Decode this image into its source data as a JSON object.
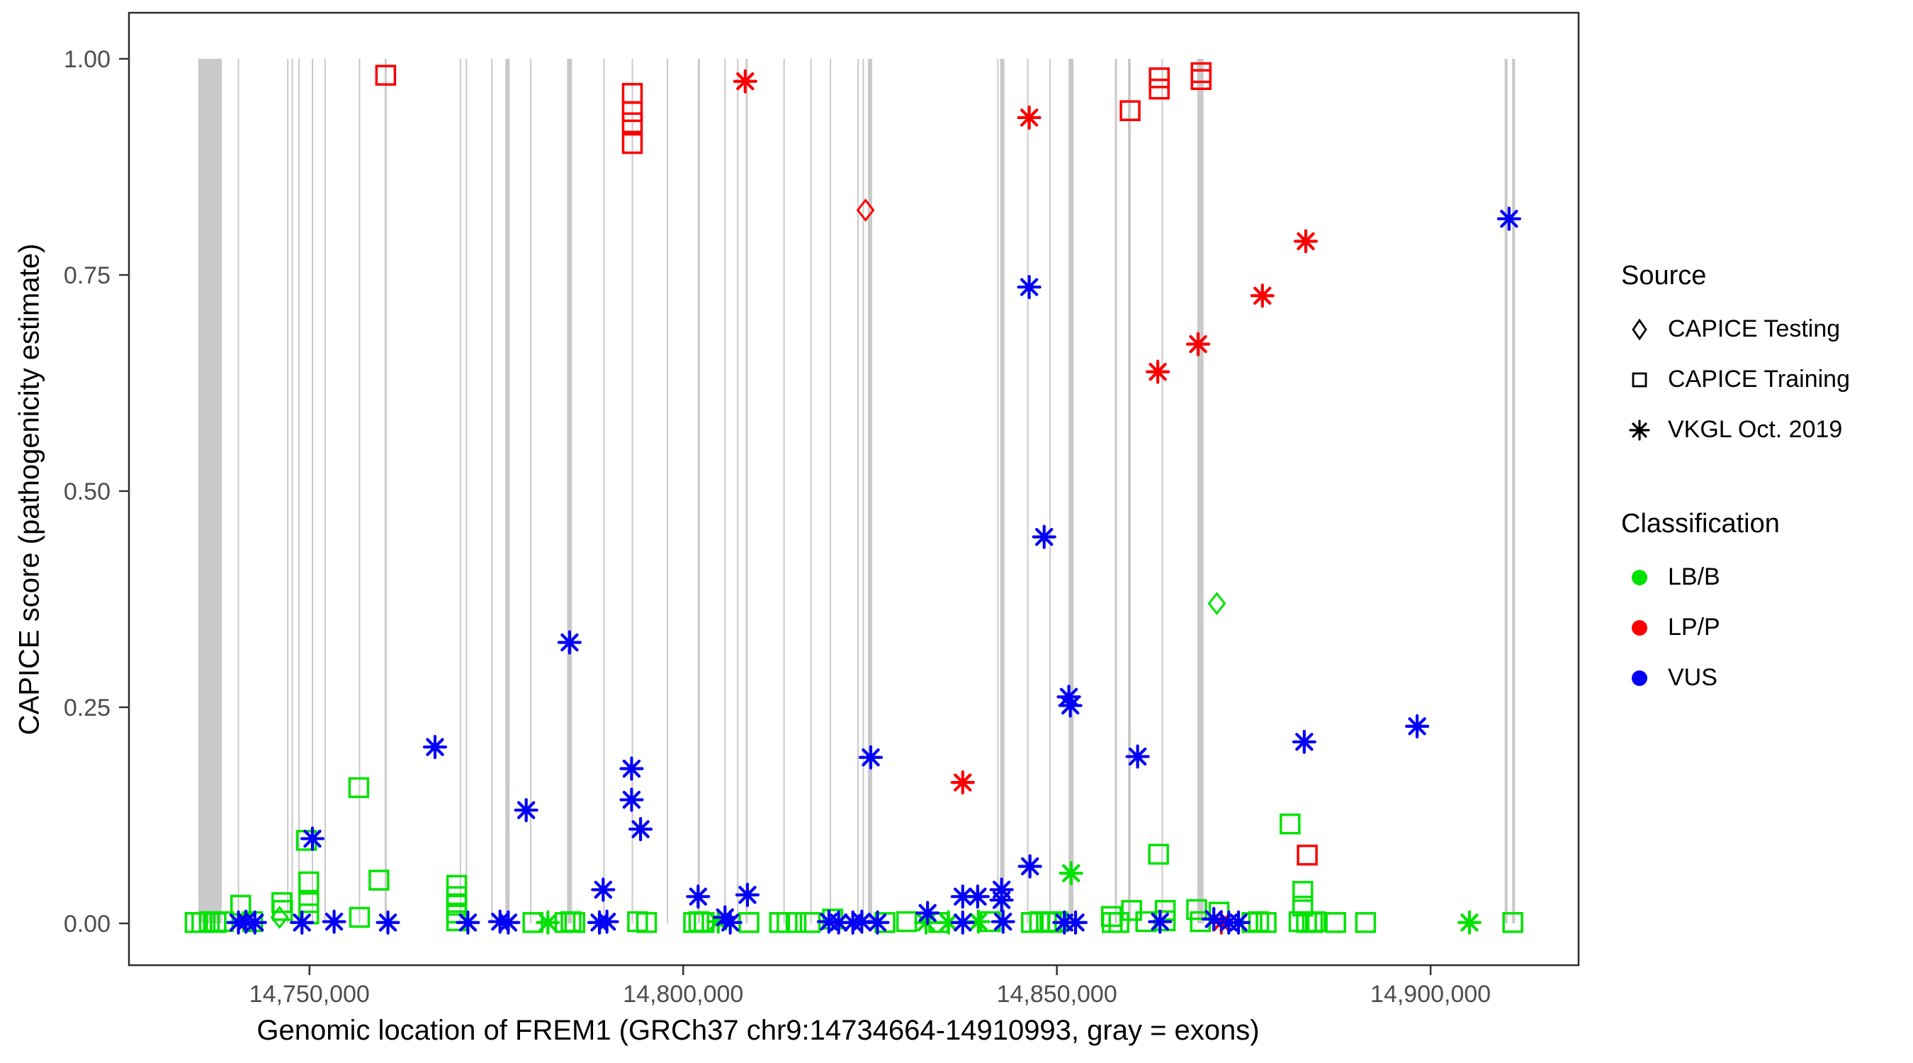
{
  "legend": {
    "source_title": "Source",
    "source_items": [
      {
        "shape": "diamond",
        "label": "CAPICE Testing"
      },
      {
        "shape": "square",
        "label": "CAPICE Training"
      },
      {
        "shape": "asterisk",
        "label": "VKGL Oct. 2019"
      }
    ],
    "classification_title": "Classification",
    "classification_items": [
      {
        "color": "#00e300",
        "label": "LB/B"
      },
      {
        "color": "#fb0000",
        "label": "LP/P"
      },
      {
        "color": "#0000f5",
        "label": "VUS"
      }
    ]
  },
  "chart_data": {
    "type": "scatter",
    "title": "",
    "xlabel": "Genomic location of FREM1 (GRCh37 chr9:14734664-14910993, gray = exons)",
    "ylabel": "CAPICE score (pathogenicity estimate)",
    "x_domain": [
      14725850,
      14919800
    ],
    "y_domain": [
      0,
      1
    ],
    "x_ticks": [
      {
        "value": 14750000,
        "label": "14,750,000"
      },
      {
        "value": 14800000,
        "label": "14,800,000"
      },
      {
        "value": 14850000,
        "label": "14,850,000"
      },
      {
        "value": 14900000,
        "label": "14,900,000"
      }
    ],
    "y_ticks": [
      {
        "value": 0.0,
        "label": "0.00"
      },
      {
        "value": 0.25,
        "label": "0.25"
      },
      {
        "value": 0.5,
        "label": "0.50"
      },
      {
        "value": 0.75,
        "label": "0.75"
      },
      {
        "value": 1.0,
        "label": "1.00"
      }
    ],
    "grid": false,
    "legend_position": "right",
    "exon_color": "#c9c9c9",
    "source_codes": {
      "T": "CAPICE Testing",
      "R": "CAPICE Training",
      "V": "VKGL Oct. 2019"
    },
    "shape_by_source": {
      "T": "diamond",
      "R": "square",
      "V": "asterisk"
    },
    "class_codes": {
      "B": "LB/B",
      "P": "LP/P",
      "U": "VUS"
    },
    "color_by_classification": {
      "B": "#00e300",
      "P": "#fb0000",
      "U": "#0000f5"
    },
    "exons_bp": [
      [
        14736700,
        3130
      ],
      [
        14740500,
        190
      ],
      [
        14747100,
        190
      ],
      [
        14747700,
        190
      ],
      [
        14748600,
        190
      ],
      [
        14750400,
        190
      ],
      [
        14752100,
        190
      ],
      [
        14756700,
        190
      ],
      [
        14760200,
        280
      ],
      [
        14770200,
        190
      ],
      [
        14771000,
        190
      ],
      [
        14774400,
        190
      ],
      [
        14776500,
        570
      ],
      [
        14779600,
        190
      ],
      [
        14784800,
        660
      ],
      [
        14789400,
        190
      ],
      [
        14793200,
        190
      ],
      [
        14797900,
        190
      ],
      [
        14802100,
        280
      ],
      [
        14805600,
        190
      ],
      [
        14807300,
        190
      ],
      [
        14808500,
        280
      ],
      [
        14813500,
        190
      ],
      [
        14817100,
        190
      ],
      [
        14819700,
        190
      ],
      [
        14823400,
        190
      ],
      [
        14824100,
        190
      ],
      [
        14825000,
        570
      ],
      [
        14842100,
        190
      ],
      [
        14842700,
        570
      ],
      [
        14846100,
        190
      ],
      [
        14849100,
        190
      ],
      [
        14851900,
        660
      ],
      [
        14857900,
        280
      ],
      [
        14859700,
        380
      ],
      [
        14864100,
        190
      ],
      [
        14869200,
        850
      ],
      [
        14910100,
        380
      ],
      [
        14911100,
        380
      ]
    ],
    "points": [
      [
        14760200,
        0.981,
        "R",
        "P"
      ],
      [
        14793200,
        0.96,
        "R",
        "P"
      ],
      [
        14793200,
        0.939,
        "R",
        "P"
      ],
      [
        14793200,
        0.926,
        "R",
        "P"
      ],
      [
        14793200,
        0.902,
        "R",
        "P"
      ],
      [
        14859800,
        0.94,
        "R",
        "P"
      ],
      [
        14863700,
        0.978,
        "R",
        "P"
      ],
      [
        14863700,
        0.965,
        "R",
        "P"
      ],
      [
        14869300,
        0.984,
        "R",
        "P"
      ],
      [
        14869300,
        0.976,
        "R",
        "P"
      ],
      [
        14883500,
        0.079,
        "R",
        "P"
      ],
      [
        14808300,
        0.974,
        "V",
        "P"
      ],
      [
        14846300,
        0.932,
        "V",
        "P"
      ],
      [
        14863500,
        0.638,
        "V",
        "P"
      ],
      [
        14868900,
        0.67,
        "V",
        "P"
      ],
      [
        14877500,
        0.726,
        "V",
        "P"
      ],
      [
        14883300,
        0.789,
        "V",
        "P"
      ],
      [
        14837400,
        0.163,
        "V",
        "P"
      ],
      [
        14872000,
        0.001,
        "V",
        "P"
      ],
      [
        14824400,
        0.825,
        "T",
        "P"
      ],
      [
        14871400,
        0.37,
        "T",
        "B"
      ],
      [
        14746000,
        0.007,
        "T",
        "B"
      ],
      [
        14749600,
        0.096,
        "R",
        "B"
      ],
      [
        14756600,
        0.157,
        "R",
        "B"
      ],
      [
        14881200,
        0.115,
        "R",
        "B"
      ],
      [
        14863600,
        0.08,
        "R",
        "B"
      ],
      [
        14759300,
        0.05,
        "R",
        "B"
      ],
      [
        14749900,
        0.048,
        "R",
        "B"
      ],
      [
        14749900,
        0.024,
        "R",
        "B"
      ],
      [
        14749900,
        0.011,
        "R",
        "B"
      ],
      [
        14769700,
        0.044,
        "R",
        "B"
      ],
      [
        14769700,
        0.031,
        "R",
        "B"
      ],
      [
        14769700,
        0.021,
        "R",
        "B"
      ],
      [
        14769700,
        0.012,
        "R",
        "B"
      ],
      [
        14769700,
        0.003,
        "R",
        "B"
      ],
      [
        14882900,
        0.037,
        "R",
        "B"
      ],
      [
        14882900,
        0.02,
        "R",
        "B"
      ],
      [
        14740800,
        0.021,
        "R",
        "B"
      ],
      [
        14746300,
        0.024,
        "R",
        "B"
      ],
      [
        14746400,
        0.015,
        "R",
        "B"
      ],
      [
        14756700,
        0.007,
        "R",
        "B"
      ],
      [
        14820000,
        0.005,
        "R",
        "B"
      ],
      [
        14860000,
        0.015,
        "R",
        "B"
      ],
      [
        14864500,
        0.015,
        "R",
        "B"
      ],
      [
        14864500,
        0.003,
        "R",
        "B"
      ],
      [
        14868700,
        0.016,
        "R",
        "B"
      ],
      [
        14871700,
        0.013,
        "R",
        "B"
      ],
      [
        14857300,
        0.008,
        "R",
        "B"
      ],
      [
        14734700,
        0.001,
        "R",
        "B"
      ],
      [
        14735600,
        0.001,
        "R",
        "B"
      ],
      [
        14736600,
        0.002,
        "R",
        "B"
      ],
      [
        14737500,
        0.001,
        "R",
        "B"
      ],
      [
        14738500,
        0.002,
        "R",
        "B"
      ],
      [
        14742400,
        0.002,
        "R",
        "B"
      ],
      [
        14779900,
        0.001,
        "R",
        "B"
      ],
      [
        14784200,
        0.001,
        "R",
        "B"
      ],
      [
        14785000,
        0.002,
        "R",
        "B"
      ],
      [
        14785500,
        0.001,
        "R",
        "B"
      ],
      [
        14793900,
        0.002,
        "R",
        "B"
      ],
      [
        14795100,
        0.001,
        "R",
        "B"
      ],
      [
        14801400,
        0.001,
        "R",
        "B"
      ],
      [
        14802100,
        0.002,
        "R",
        "B"
      ],
      [
        14802800,
        0.001,
        "R",
        "B"
      ],
      [
        14808800,
        0.001,
        "R",
        "B"
      ],
      [
        14812900,
        0.001,
        "R",
        "B"
      ],
      [
        14813900,
        0.001,
        "R",
        "B"
      ],
      [
        14815100,
        0.001,
        "R",
        "B"
      ],
      [
        14817000,
        0.001,
        "R",
        "B"
      ],
      [
        14827000,
        0.001,
        "R",
        "B"
      ],
      [
        14829900,
        0.002,
        "R",
        "B"
      ],
      [
        14834200,
        0.001,
        "R",
        "B"
      ],
      [
        14841100,
        0.002,
        "R",
        "B"
      ],
      [
        14846600,
        0.001,
        "R",
        "B"
      ],
      [
        14847700,
        0.002,
        "R",
        "B"
      ],
      [
        14848600,
        0.001,
        "R",
        "B"
      ],
      [
        14849300,
        0.001,
        "R",
        "B"
      ],
      [
        14850100,
        0.002,
        "R",
        "B"
      ],
      [
        14857400,
        0.001,
        "R",
        "B"
      ],
      [
        14858300,
        0.001,
        "R",
        "B"
      ],
      [
        14861900,
        0.002,
        "R",
        "B"
      ],
      [
        14869200,
        0.002,
        "R",
        "B"
      ],
      [
        14876100,
        0.001,
        "R",
        "B"
      ],
      [
        14877000,
        0.002,
        "R",
        "B"
      ],
      [
        14878000,
        0.001,
        "R",
        "B"
      ],
      [
        14882400,
        0.002,
        "R",
        "B"
      ],
      [
        14883400,
        0.001,
        "R",
        "B"
      ],
      [
        14884200,
        0.001,
        "R",
        "B"
      ],
      [
        14884600,
        0.002,
        "R",
        "B"
      ],
      [
        14887300,
        0.001,
        "R",
        "B"
      ],
      [
        14891300,
        0.001,
        "R",
        "B"
      ],
      [
        14911000,
        0.001,
        "R",
        "B"
      ],
      [
        14851900,
        0.058,
        "V",
        "B"
      ],
      [
        14781900,
        0.001,
        "V",
        "B"
      ],
      [
        14804700,
        0.002,
        "V",
        "B"
      ],
      [
        14832500,
        0.001,
        "V",
        "B"
      ],
      [
        14835500,
        0.001,
        "V",
        "B"
      ],
      [
        14839500,
        0.002,
        "V",
        "B"
      ],
      [
        14905200,
        0.001,
        "V",
        "B"
      ],
      [
        14846300,
        0.736,
        "V",
        "U"
      ],
      [
        14848300,
        0.447,
        "V",
        "U"
      ],
      [
        14851600,
        0.262,
        "V",
        "U"
      ],
      [
        14851800,
        0.252,
        "V",
        "U"
      ],
      [
        14910500,
        0.815,
        "V",
        "U"
      ],
      [
        14898200,
        0.228,
        "V",
        "U"
      ],
      [
        14883100,
        0.21,
        "V",
        "U"
      ],
      [
        14860800,
        0.193,
        "V",
        "U"
      ],
      [
        14825100,
        0.192,
        "V",
        "U"
      ],
      [
        14784800,
        0.325,
        "V",
        "U"
      ],
      [
        14766800,
        0.204,
        "V",
        "U"
      ],
      [
        14793100,
        0.179,
        "V",
        "U"
      ],
      [
        14793100,
        0.143,
        "V",
        "U"
      ],
      [
        14794300,
        0.109,
        "V",
        "U"
      ],
      [
        14779000,
        0.131,
        "V",
        "U"
      ],
      [
        14750400,
        0.098,
        "V",
        "U"
      ],
      [
        14846400,
        0.066,
        "V",
        "U"
      ],
      [
        14842600,
        0.039,
        "V",
        "U"
      ],
      [
        14842600,
        0.027,
        "V",
        "U"
      ],
      [
        14789300,
        0.039,
        "V",
        "U"
      ],
      [
        14802000,
        0.031,
        "V",
        "U"
      ],
      [
        14808600,
        0.033,
        "V",
        "U"
      ],
      [
        14837400,
        0.031,
        "V",
        "U"
      ],
      [
        14839400,
        0.031,
        "V",
        "U"
      ],
      [
        14832700,
        0.012,
        "V",
        "U"
      ],
      [
        14805600,
        0.007,
        "V",
        "U"
      ],
      [
        14871000,
        0.005,
        "V",
        "U"
      ],
      [
        14740500,
        0.001,
        "V",
        "U"
      ],
      [
        14741500,
        0.002,
        "V",
        "U"
      ],
      [
        14742700,
        0.001,
        "V",
        "U"
      ],
      [
        14749000,
        0.001,
        "V",
        "U"
      ],
      [
        14753300,
        0.002,
        "V",
        "U"
      ],
      [
        14760500,
        0.001,
        "V",
        "U"
      ],
      [
        14771200,
        0.001,
        "V",
        "U"
      ],
      [
        14775500,
        0.002,
        "V",
        "U"
      ],
      [
        14776600,
        0.001,
        "V",
        "U"
      ],
      [
        14788800,
        0.001,
        "V",
        "U"
      ],
      [
        14789800,
        0.002,
        "V",
        "U"
      ],
      [
        14806300,
        0.001,
        "V",
        "U"
      ],
      [
        14819500,
        0.002,
        "V",
        "U"
      ],
      [
        14820800,
        0.001,
        "V",
        "U"
      ],
      [
        14822700,
        0.001,
        "V",
        "U"
      ],
      [
        14823900,
        0.002,
        "V",
        "U"
      ],
      [
        14826000,
        0.001,
        "V",
        "U"
      ],
      [
        14837400,
        0.001,
        "V",
        "U"
      ],
      [
        14842800,
        0.002,
        "V",
        "U"
      ],
      [
        14851000,
        0.001,
        "V",
        "U"
      ],
      [
        14852500,
        0.001,
        "V",
        "U"
      ],
      [
        14863800,
        0.002,
        "V",
        "U"
      ],
      [
        14873000,
        0.001,
        "V",
        "U"
      ],
      [
        14874300,
        0.001,
        "V",
        "U"
      ]
    ]
  }
}
